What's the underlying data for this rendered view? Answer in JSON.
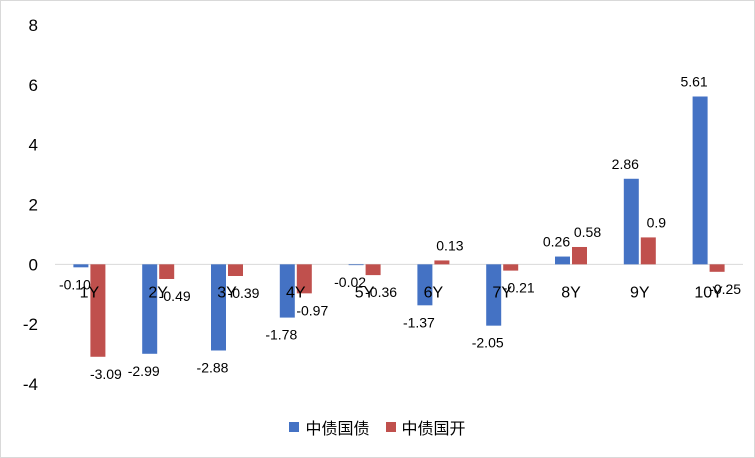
{
  "chart_data": {
    "type": "bar",
    "categories": [
      "1Y",
      "2Y",
      "3Y",
      "4Y",
      "5Y",
      "6Y",
      "7Y",
      "8Y",
      "9Y",
      "10Y"
    ],
    "series": [
      {
        "name": "中债国债",
        "color": "#4472c4",
        "values": [
          -0.1,
          -2.99,
          -2.88,
          -1.78,
          -0.02,
          -1.37,
          -2.05,
          0.26,
          2.86,
          5.61
        ],
        "labels": [
          "-0.10",
          "-2.99",
          "-2.88",
          "-1.78",
          "-0.02",
          "-1.37",
          "-2.05",
          "0.26",
          "2.86",
          "5.61"
        ]
      },
      {
        "name": "中债国开",
        "color": "#c0504d",
        "values": [
          -3.09,
          -0.49,
          -0.39,
          -0.97,
          -0.36,
          0.13,
          -0.21,
          0.58,
          0.9,
          -0.25
        ],
        "labels": [
          "-3.09",
          "-0.49",
          "-0.39",
          "-0.97",
          "-0.36",
          "0.13",
          "-0.21",
          "0.58",
          "0.9",
          "-0.25"
        ]
      }
    ],
    "ylim": [
      -4,
      8
    ],
    "yticks": [
      "-4",
      "-2",
      "0",
      "2",
      "4",
      "6",
      "8"
    ],
    "legend_position": "bottom",
    "grid": false
  }
}
